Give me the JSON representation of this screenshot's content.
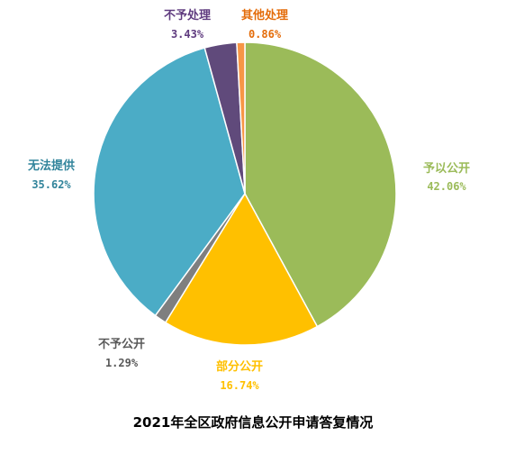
{
  "chart_data": {
    "type": "pie",
    "title": "2021年全区政府信息公开申请答复情况",
    "slices": [
      {
        "label": "予以公开",
        "value": 42.06,
        "value_text": "42.06%",
        "color": "#9BBB59"
      },
      {
        "label": "部分公开",
        "value": 16.74,
        "value_text": "16.74%",
        "color": "#FFC000"
      },
      {
        "label": "不予公开",
        "value": 1.29,
        "value_text": "1.29%",
        "color": "#7F7F7F"
      },
      {
        "label": "无法提供",
        "value": 35.62,
        "value_text": "35.62%",
        "color": "#4BACC6"
      },
      {
        "label": "不予处理",
        "value": 3.43,
        "value_text": "3.43%",
        "color": "#604A7B"
      },
      {
        "label": "其他处理",
        "value": 0.86,
        "value_text": "0.86%",
        "color": "#F79646"
      }
    ],
    "label_colors": [
      "#9BBB59",
      "#FFC000",
      "#595959",
      "#31849B",
      "#5F3B7F",
      "#E46C0A"
    ],
    "start": "12 o'clock",
    "direction": "clockwise",
    "legend": "none"
  }
}
